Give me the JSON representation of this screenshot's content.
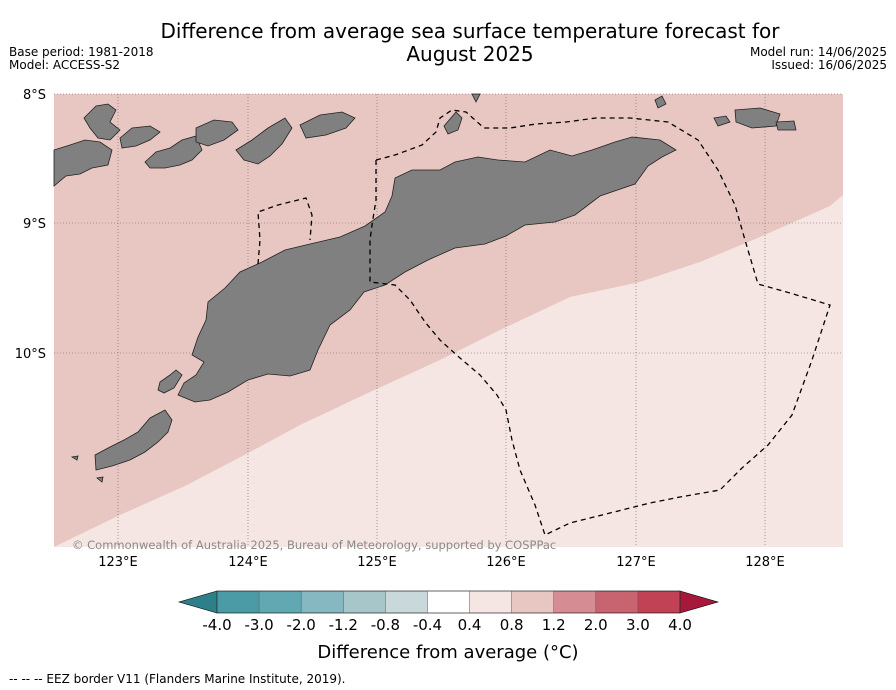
{
  "header": {
    "title_line1": "Difference from average sea surface temperature forecast for",
    "title_line2": "August 2025",
    "base_period": "Base period: 1981-2018",
    "model": "Model: ACCESS-S2",
    "model_run": "Model run: 14/06/2025",
    "issued": "Issued: 16/06/2025"
  },
  "map": {
    "lat_labels": [
      "8°S",
      "9°S",
      "10°S"
    ],
    "lon_labels": [
      "123°E",
      "124°E",
      "125°E",
      "126°E",
      "127°E",
      "128°E"
    ],
    "copyright": "© Commonwealth of Australia 2025, Bureau of Meteorology, supported by COSPPac",
    "land_color": "#808080",
    "anomaly_band_0_4_to_0_8_color": "#f5e6e4",
    "anomaly_band_0_8_to_1_2_color": "#e8c7c2"
  },
  "colorbar": {
    "ticks": [
      "-4.0",
      "-3.0",
      "-2.0",
      "-1.2",
      "-0.8",
      "-0.4",
      "0.4",
      "0.8",
      "1.2",
      "2.0",
      "3.0",
      "4.0"
    ],
    "colors": [
      "#4a9ba6",
      "#62a8b2",
      "#86b8c2",
      "#a6c6ca",
      "#c9d8da",
      "#ffffff",
      "#f5e6e4",
      "#e8c7c2",
      "#d58c92",
      "#c8646f",
      "#c04254"
    ],
    "under_color": "#2d7f8a",
    "over_color": "#a6193a",
    "label": "Difference from average (°C)"
  },
  "footer": {
    "eez_legend": "--  --  -- EEZ border V11 (Flanders Marine Institute, 2019)."
  }
}
